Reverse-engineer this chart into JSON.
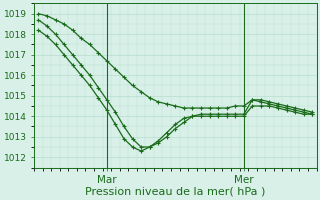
{
  "xlabel": "Pression niveau de la mer( hPa )",
  "bg_color": "#d8f0e8",
  "grid_color": "#b8ddd0",
  "line_color": "#1a6b1a",
  "ylim": [
    1011.5,
    1019.5
  ],
  "yticks": [
    1012,
    1013,
    1014,
    1015,
    1016,
    1017,
    1018,
    1019
  ],
  "xtick_labels": [
    "Mar",
    "Mer"
  ],
  "xtick_positions": [
    8,
    24
  ],
  "x_vlines": [
    8,
    24
  ],
  "n_points": 33,
  "series1_x": [
    0,
    1,
    2,
    3,
    4,
    5,
    6,
    7,
    8,
    9,
    10,
    11,
    12,
    13,
    14,
    15,
    16,
    17,
    18,
    19,
    20,
    21,
    22,
    23,
    24,
    25,
    26,
    27,
    28,
    29,
    30,
    31,
    32
  ],
  "series1_y": [
    1018.7,
    1018.4,
    1018.0,
    1017.5,
    1017.0,
    1016.5,
    1016.0,
    1015.4,
    1014.8,
    1014.2,
    1013.5,
    1012.9,
    1012.5,
    1012.5,
    1012.7,
    1013.0,
    1013.4,
    1013.7,
    1014.0,
    1014.1,
    1014.1,
    1014.1,
    1014.1,
    1014.1,
    1014.1,
    1014.8,
    1014.7,
    1014.6,
    1014.5,
    1014.4,
    1014.3,
    1014.2,
    1014.1
  ],
  "series2_x": [
    0,
    1,
    2,
    3,
    4,
    5,
    6,
    7,
    8,
    9,
    10,
    11,
    12,
    13,
    14,
    15,
    16,
    17,
    18,
    19,
    20,
    21,
    22,
    23,
    24,
    25,
    26,
    27,
    28,
    29,
    30,
    31,
    32
  ],
  "series2_y": [
    1019.0,
    1018.9,
    1018.7,
    1018.5,
    1018.2,
    1017.8,
    1017.5,
    1017.1,
    1016.7,
    1016.3,
    1015.9,
    1015.5,
    1015.2,
    1014.9,
    1014.7,
    1014.6,
    1014.5,
    1014.4,
    1014.4,
    1014.4,
    1014.4,
    1014.4,
    1014.4,
    1014.5,
    1014.5,
    1014.8,
    1014.8,
    1014.7,
    1014.6,
    1014.5,
    1014.4,
    1014.3,
    1014.2
  ],
  "series3_x": [
    0,
    1,
    2,
    3,
    4,
    5,
    6,
    7,
    8,
    9,
    10,
    11,
    12,
    13,
    14,
    15,
    16,
    17,
    18,
    19,
    20,
    21,
    22,
    23,
    24,
    25,
    26,
    27,
    28,
    29,
    30,
    31,
    32
  ],
  "series3_y": [
    1018.2,
    1017.9,
    1017.5,
    1017.0,
    1016.5,
    1016.0,
    1015.5,
    1014.9,
    1014.3,
    1013.6,
    1012.9,
    1012.5,
    1012.3,
    1012.5,
    1012.8,
    1013.2,
    1013.6,
    1013.9,
    1014.0,
    1014.0,
    1014.0,
    1014.0,
    1014.0,
    1014.0,
    1014.0,
    1014.5,
    1014.5,
    1014.5,
    1014.4,
    1014.3,
    1014.2,
    1014.1,
    1014.1
  ],
  "xlim": [
    -0.5,
    32.5
  ],
  "marker": "+",
  "markersize": 3.0,
  "linewidth": 0.9,
  "xlabel_fontsize": 8,
  "ytick_fontsize": 6.5,
  "xtick_fontsize": 7.5
}
